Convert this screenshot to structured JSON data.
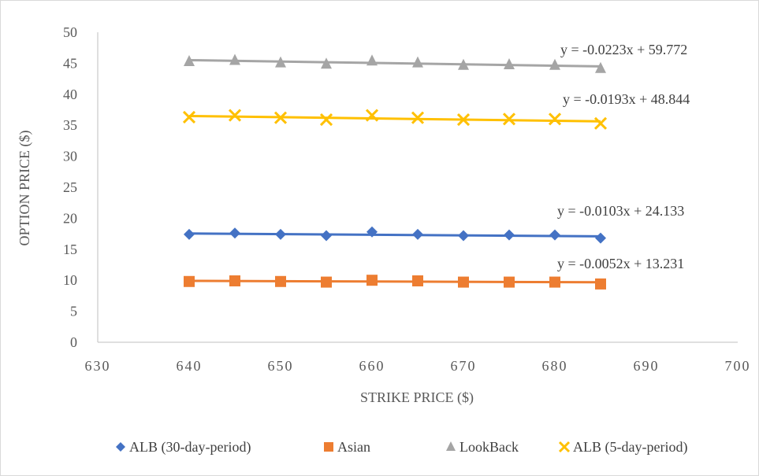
{
  "chart_data": {
    "type": "scatter",
    "title": "",
    "xlabel": "STRIKE PRICE ($)",
    "ylabel": "OPTION PRICE ($)",
    "xlim": [
      630,
      700
    ],
    "ylim": [
      0,
      50
    ],
    "x_ticks": [
      630,
      640,
      650,
      660,
      670,
      680,
      690,
      700
    ],
    "y_ticks": [
      0,
      5,
      10,
      15,
      20,
      25,
      30,
      35,
      40,
      45,
      50
    ],
    "grid": false,
    "legend_position": "bottom",
    "x": [
      640,
      645,
      650,
      655,
      660,
      665,
      670,
      675,
      680,
      685
    ],
    "series": [
      {
        "name": "ALB (30-day-period)",
        "marker": "diamond",
        "color": "#4472C4",
        "values": [
          17.4,
          17.6,
          17.4,
          17.2,
          17.8,
          17.4,
          17.2,
          17.3,
          17.3,
          16.8
        ],
        "trendline": {
          "slope": -0.0103,
          "intercept": 24.133
        },
        "equation": "y = -0.0103x + 24.133"
      },
      {
        "name": "Asian",
        "marker": "square",
        "color": "#ED7D31",
        "values": [
          9.8,
          9.9,
          9.8,
          9.7,
          10.0,
          9.9,
          9.7,
          9.7,
          9.7,
          9.4
        ],
        "trendline": {
          "slope": -0.0052,
          "intercept": 13.231
        },
        "equation": "y = -0.0052x + 13.231"
      },
      {
        "name": "LookBack",
        "marker": "triangle",
        "color": "#A5A5A5",
        "values": [
          45.3,
          45.5,
          45.1,
          44.9,
          45.4,
          45.1,
          44.7,
          44.8,
          44.7,
          44.2
        ],
        "trendline": {
          "slope": -0.0223,
          "intercept": 59.772
        },
        "equation": "y = -0.0223x + 59.772"
      },
      {
        "name": "ALB (5-day-period)",
        "marker": "x",
        "color": "#FFC000",
        "values": [
          36.3,
          36.6,
          36.2,
          35.9,
          36.6,
          36.2,
          35.9,
          36.0,
          36.0,
          35.3
        ],
        "trendline": {
          "slope": -0.0193,
          "intercept": 48.844
        },
        "equation": "y = -0.0193x + 48.844"
      }
    ]
  }
}
